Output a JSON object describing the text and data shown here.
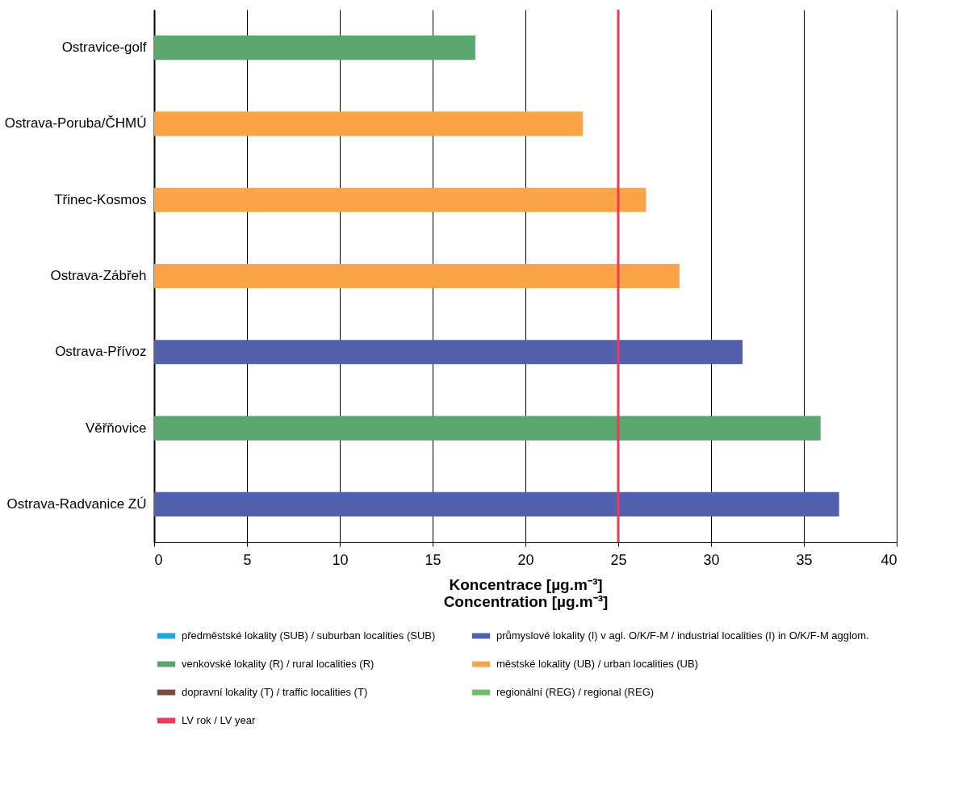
{
  "chart_data": {
    "type": "bar",
    "orientation": "horizontal",
    "xlabel": "Koncentrace [µg.m⁻³]\nConcentration [µg.m⁻³]",
    "categories": [
      "Ostravice-golf",
      "Ostrava-Poruba/ČHMÚ",
      "Třinec-Kosmos",
      "Ostrava-Zábřeh",
      "Ostrava-Přívoz",
      "Věřňovice",
      "Ostrava-Radvanice ZÚ"
    ],
    "series": [
      {
        "name": "předměstské lokality (SUB) / suburban localities (SUB)",
        "color": "#1fa6dd",
        "values": [
          null,
          null,
          null,
          null,
          null,
          null,
          null
        ]
      },
      {
        "name": "průmyslové lokality (I) v agl. O/K/F-M / industrial localities (I) in O/K/F-M agglom.",
        "color": "#5360ae",
        "values": [
          null,
          null,
          null,
          null,
          31.7,
          null,
          36.9
        ]
      },
      {
        "name": "venkovské lokality (R) / rural localities (R)",
        "color": "#5aa66f",
        "values": [
          17.3,
          null,
          null,
          null,
          null,
          35.9,
          null
        ]
      },
      {
        "name": "městské lokality (UB) / urban localities (UB)",
        "color": "#fba347",
        "values": [
          null,
          23.1,
          26.5,
          28.3,
          null,
          null,
          null
        ]
      },
      {
        "name": "dopravní lokality (T) / traffic localities (T)",
        "color": "#7b4b3f",
        "values": [
          null,
          null,
          null,
          null,
          null,
          null,
          null
        ]
      },
      {
        "name": "regionální (REG) / regional (REG)",
        "color": "#6fbf6a",
        "values": [
          null,
          null,
          null,
          null,
          null,
          null,
          null
        ]
      }
    ],
    "ref_lines": [
      {
        "axis": "x",
        "value": 25,
        "label": "LV rok / LV year",
        "color": "#ee3a5a"
      }
    ],
    "xlim": [
      0,
      40
    ],
    "xticks": [
      0,
      5,
      10,
      15,
      20,
      25,
      30,
      35,
      40
    ],
    "grid": "x",
    "legend": "bottom"
  }
}
